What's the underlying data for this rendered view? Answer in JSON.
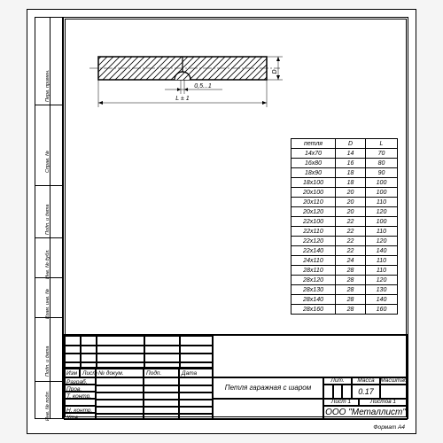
{
  "drawing": {
    "dimensions": {
      "gap": "0,5...1",
      "length": "L ± 1",
      "diameter": "D"
    },
    "hatch_color": "#000000",
    "stroke": "#000000",
    "background": "#ffffff"
  },
  "table": {
    "headers": [
      "петля",
      "D",
      "L"
    ],
    "rows": [
      [
        "14x70",
        "14",
        "70"
      ],
      [
        "16x80",
        "16",
        "80"
      ],
      [
        "18x90",
        "18",
        "90"
      ],
      [
        "18x100",
        "18",
        "100"
      ],
      [
        "20x100",
        "20",
        "100"
      ],
      [
        "20x110",
        "20",
        "110"
      ],
      [
        "20x120",
        "20",
        "120"
      ],
      [
        "22x100",
        "22",
        "100"
      ],
      [
        "22x110",
        "22",
        "110"
      ],
      [
        "22x120",
        "22",
        "120"
      ],
      [
        "22x140",
        "22",
        "140"
      ],
      [
        "24x110",
        "24",
        "110"
      ],
      [
        "28x110",
        "28",
        "110"
      ],
      [
        "28x120",
        "28",
        "120"
      ],
      [
        "28x130",
        "28",
        "130"
      ],
      [
        "28x140",
        "28",
        "140"
      ],
      [
        "28x160",
        "28",
        "160"
      ]
    ]
  },
  "left_labels": {
    "a": "Перв. примен.",
    "b": "Справ. №",
    "c": "Подп. и дата",
    "d": "Инв. № дубл.",
    "e": "Взам. инв. №",
    "f": "Подп. и дата",
    "g": "Инв. № подл."
  },
  "titleblock": {
    "cols": [
      "Изм",
      "Лист",
      "№ докум.",
      "Подп.",
      "Дата"
    ],
    "rows": [
      "Разраб.",
      "Пров.",
      "Т. контр.",
      "",
      "Н. контр.",
      "Утв."
    ],
    "title": "Петля гаражная  с шаром",
    "lit": "Лит.",
    "mass": "Масса",
    "mass_value": "0.17",
    "scale": "Масштаб",
    "sheet": "Лист 1",
    "sheets": "Листов 1",
    "company": "ООО  \"Металлист\""
  },
  "format": "Формат A4"
}
